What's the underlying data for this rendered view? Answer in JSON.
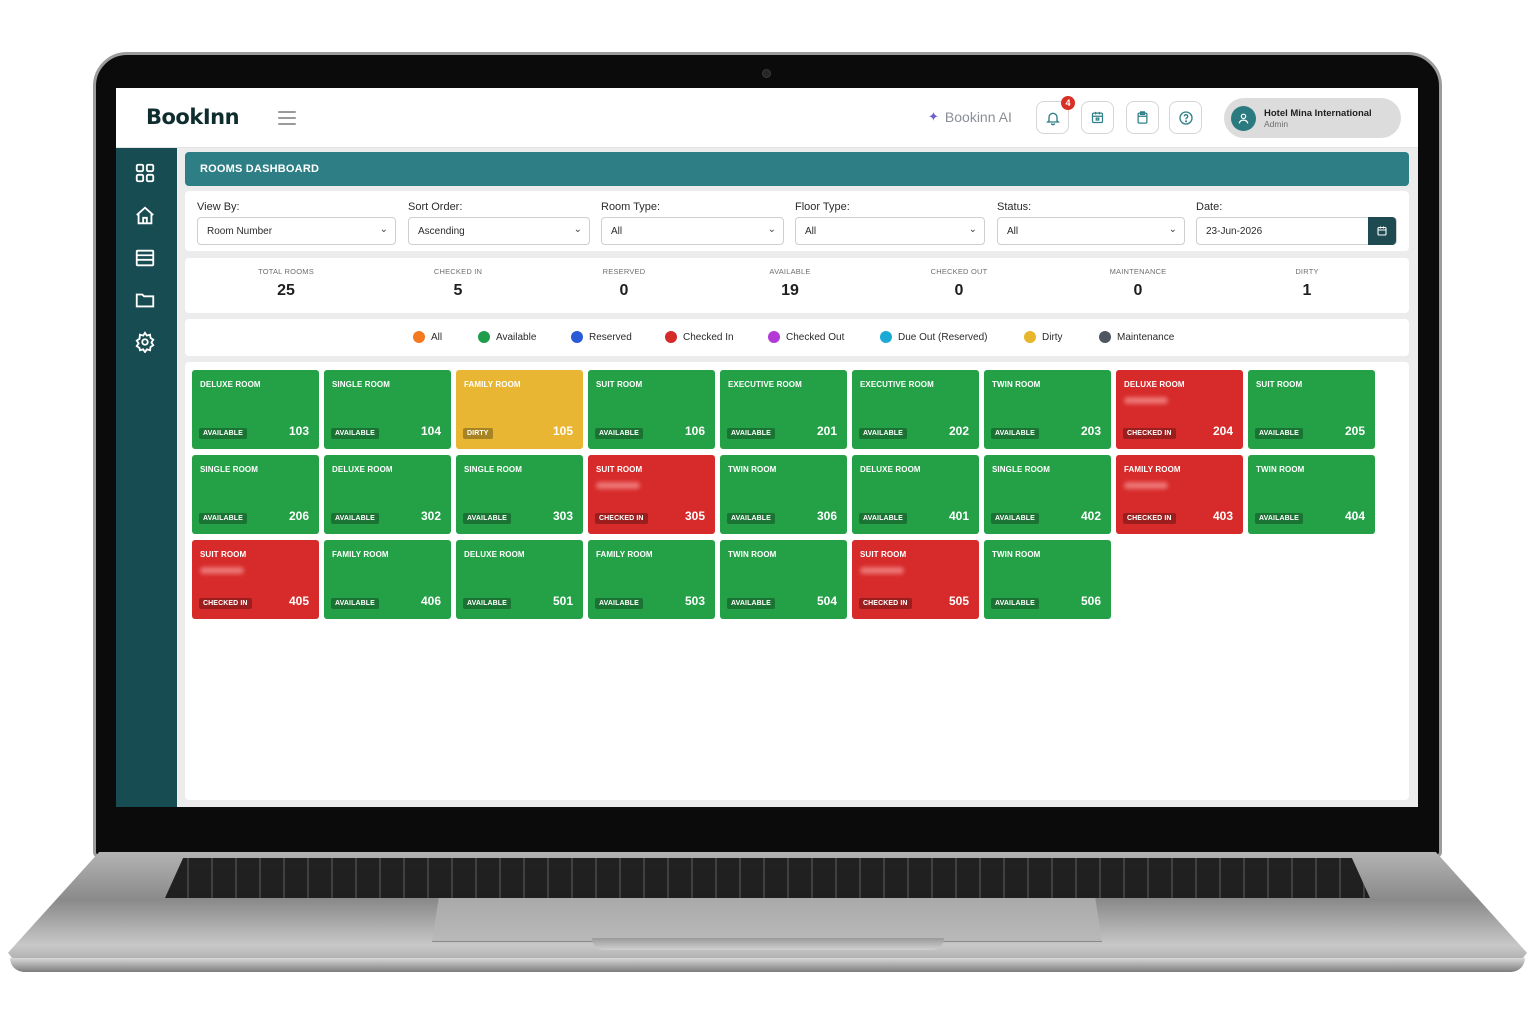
{
  "app": {
    "logo": "BookInn",
    "ai_label": "Bookinn AI",
    "notification_count": "4"
  },
  "user": {
    "name": "Hotel Mina International",
    "role": "Admin"
  },
  "page": {
    "title": "ROOMS DASHBOARD"
  },
  "filters": {
    "view_by": {
      "label": "View By:",
      "value": "Room Number"
    },
    "sort_order": {
      "label": "Sort Order:",
      "value": "Ascending"
    },
    "room_type": {
      "label": "Room Type:",
      "value": "All"
    },
    "floor_type": {
      "label": "Floor Type:",
      "value": "All"
    },
    "status": {
      "label": "Status:",
      "value": "All"
    },
    "date": {
      "label": "Date:",
      "value": "23-Jun-2026"
    }
  },
  "stats": [
    {
      "label": "TOTAL ROOMS",
      "value": "25"
    },
    {
      "label": "CHECKED IN",
      "value": "5"
    },
    {
      "label": "RESERVED",
      "value": "0"
    },
    {
      "label": "AVAILABLE",
      "value": "19"
    },
    {
      "label": "CHECKED OUT",
      "value": "0"
    },
    {
      "label": "MAINTENANCE",
      "value": "0"
    },
    {
      "label": "DIRTY",
      "value": "1"
    }
  ],
  "legend": [
    {
      "label": "All",
      "color": "#f47a1f"
    },
    {
      "label": "Available",
      "color": "#1e9e4a"
    },
    {
      "label": "Reserved",
      "color": "#2a5bd7"
    },
    {
      "label": "Checked In",
      "color": "#d42a2a"
    },
    {
      "label": "Checked Out",
      "color": "#b43ad6"
    },
    {
      "label": "Due Out (Reserved)",
      "color": "#1ba9d6"
    },
    {
      "label": "Dirty",
      "color": "#e8b62b"
    },
    {
      "label": "Maintenance",
      "color": "#4f5661"
    }
  ],
  "status_colors": {
    "AVAILABLE": "#24a047",
    "CHECKED IN": "#d72a2a",
    "DIRTY": "#e9b633"
  },
  "rooms": [
    {
      "type": "DELUXE ROOM",
      "status": "AVAILABLE",
      "number": "103"
    },
    {
      "type": "SINGLE ROOM",
      "status": "AVAILABLE",
      "number": "104"
    },
    {
      "type": "FAMILY ROOM",
      "status": "DIRTY",
      "number": "105"
    },
    {
      "type": "SUIT ROOM",
      "status": "AVAILABLE",
      "number": "106"
    },
    {
      "type": "EXECUTIVE ROOM",
      "status": "AVAILABLE",
      "number": "201"
    },
    {
      "type": "EXECUTIVE ROOM",
      "status": "AVAILABLE",
      "number": "202"
    },
    {
      "type": "TWIN ROOM",
      "status": "AVAILABLE",
      "number": "203"
    },
    {
      "type": "DELUXE ROOM",
      "status": "CHECKED IN",
      "number": "204"
    },
    {
      "type": "SUIT ROOM",
      "status": "AVAILABLE",
      "number": "205"
    },
    {
      "type": "SINGLE ROOM",
      "status": "AVAILABLE",
      "number": "206"
    },
    {
      "type": "DELUXE ROOM",
      "status": "AVAILABLE",
      "number": "302"
    },
    {
      "type": "SINGLE ROOM",
      "status": "AVAILABLE",
      "number": "303"
    },
    {
      "type": "SUIT ROOM",
      "status": "CHECKED IN",
      "number": "305"
    },
    {
      "type": "TWIN ROOM",
      "status": "AVAILABLE",
      "number": "306"
    },
    {
      "type": "DELUXE ROOM",
      "status": "AVAILABLE",
      "number": "401"
    },
    {
      "type": "SINGLE ROOM",
      "status": "AVAILABLE",
      "number": "402"
    },
    {
      "type": "FAMILY ROOM",
      "status": "CHECKED IN",
      "number": "403"
    },
    {
      "type": "TWIN ROOM",
      "status": "AVAILABLE",
      "number": "404"
    },
    {
      "type": "SUIT ROOM",
      "status": "CHECKED IN",
      "number": "405"
    },
    {
      "type": "FAMILY ROOM",
      "status": "AVAILABLE",
      "number": "406"
    },
    {
      "type": "DELUXE ROOM",
      "status": "AVAILABLE",
      "number": "501"
    },
    {
      "type": "FAMILY ROOM",
      "status": "AVAILABLE",
      "number": "503"
    },
    {
      "type": "TWIN ROOM",
      "status": "AVAILABLE",
      "number": "504"
    },
    {
      "type": "SUIT ROOM",
      "status": "CHECKED IN",
      "number": "505"
    },
    {
      "type": "TWIN ROOM",
      "status": "AVAILABLE",
      "number": "506"
    }
  ]
}
